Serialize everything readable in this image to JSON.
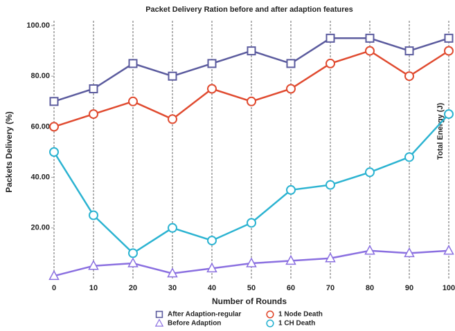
{
  "chart_data": {
    "type": "line",
    "title": "Packet Delivery Ration before and after adaption features",
    "x_label": "Number of Rounds",
    "y_label": "Packets Delivery (%)",
    "annotation": "Total Energy (J)",
    "x": [
      0,
      10,
      20,
      30,
      40,
      50,
      60,
      70,
      80,
      90,
      100
    ],
    "xlim": [
      0,
      100
    ],
    "xticks": [
      0,
      10,
      20,
      30,
      40,
      50,
      60,
      70,
      80,
      90,
      100
    ],
    "ylim": [
      0,
      100
    ],
    "yticks": [
      {
        "value": 20,
        "label": "20.00"
      },
      {
        "value": 40,
        "label": "40.00"
      },
      {
        "value": 60,
        "label": "60.00"
      },
      {
        "value": 80,
        "label": "80.00"
      },
      {
        "value": 100,
        "label": "100.00"
      }
    ],
    "grid": true,
    "legend": "bottom",
    "series": [
      {
        "name": "After Adaption-regular",
        "color": "#5b5b9e",
        "marker": "square",
        "values": [
          70,
          75,
          85,
          80,
          85,
          90,
          85,
          95,
          95,
          90,
          95
        ]
      },
      {
        "name": "1 Node Death",
        "color": "#e04a2f",
        "marker": "circle",
        "values": [
          60,
          65,
          70,
          63,
          75,
          70,
          75,
          85,
          90,
          80,
          90
        ]
      },
      {
        "name": "Before Adaption",
        "color": "#8a6fe0",
        "marker": "triangle",
        "values": [
          1,
          5,
          6,
          2,
          4,
          6,
          7,
          8,
          11,
          10,
          11
        ]
      },
      {
        "name": "1 CH Death",
        "color": "#2bb3d1",
        "marker": "circle",
        "values": [
          50,
          25,
          10,
          20,
          15,
          22,
          35,
          37,
          42,
          48,
          65
        ]
      }
    ]
  }
}
